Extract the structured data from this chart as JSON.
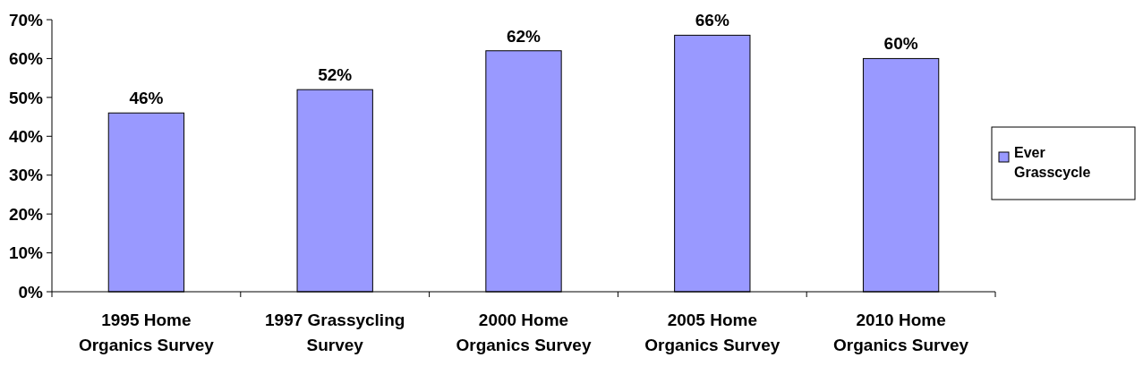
{
  "chart_data": {
    "type": "bar",
    "categories": [
      "1995 Home Organics Survey",
      "1997 Grassycling Survey",
      "2000 Home Organics Survey",
      "2005 Home Organics Survey",
      "2010 Home Organics Survey"
    ],
    "series": [
      {
        "name": "Ever Grasscycle",
        "color": "#9999ff",
        "values": [
          46,
          52,
          62,
          66,
          60
        ],
        "value_labels": [
          "46%",
          "52%",
          "62%",
          "66%",
          "60%"
        ]
      }
    ],
    "ylim": [
      0,
      70
    ],
    "yticks": [
      {
        "value": 0,
        "label": "0%"
      },
      {
        "value": 10,
        "label": "10%"
      },
      {
        "value": 20,
        "label": "20%"
      },
      {
        "value": 30,
        "label": "30%"
      },
      {
        "value": 40,
        "label": "40%"
      },
      {
        "value": 50,
        "label": "50%"
      },
      {
        "value": 60,
        "label": "60%"
      },
      {
        "value": 70,
        "label": "70%"
      }
    ],
    "grid": false,
    "legend": "right"
  }
}
